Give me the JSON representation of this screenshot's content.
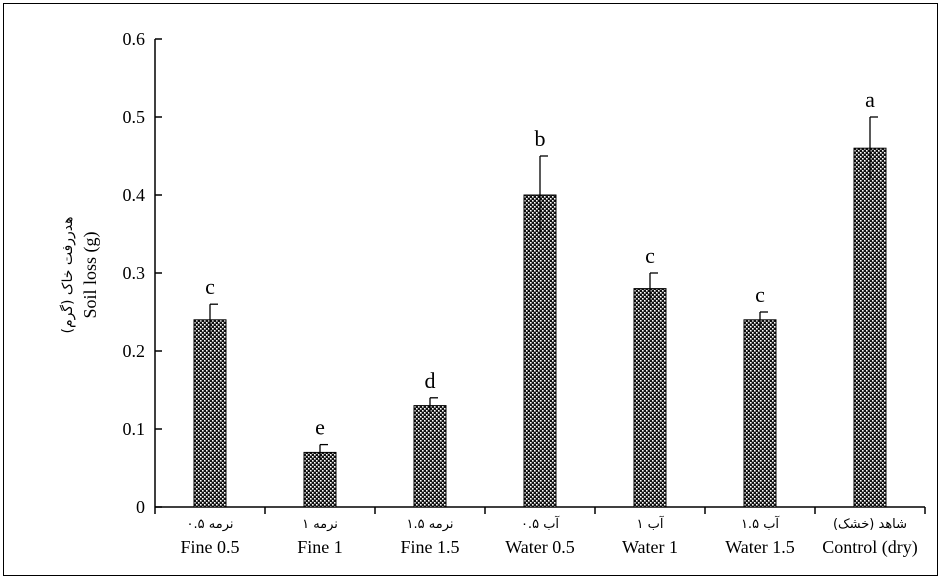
{
  "chart_data": {
    "type": "bar",
    "ylabel": "Soil loss (g)",
    "ylabel_fa": "هدررفت خاک (گرم)",
    "ylim": [
      0,
      0.6
    ],
    "yticks": [
      "0",
      "0.1",
      "0.2",
      "0.3",
      "0.4",
      "0.5",
      "0.6"
    ],
    "categories": [
      "Fine 0.5",
      "Fine 1",
      "Fine 1.5",
      "Water 0.5",
      "Water 1",
      "Water 1.5",
      "Control (dry)"
    ],
    "categories_fa": [
      "نرمه ۰.۵",
      "نرمه ۱",
      "نرمه ۱.۵",
      "آب ۰.۵",
      "آب ۱",
      "آب ۱.۵",
      "شاهد (خشک)"
    ],
    "values": [
      0.24,
      0.07,
      0.13,
      0.4,
      0.28,
      0.24,
      0.46
    ],
    "errors": [
      0.02,
      0.01,
      0.01,
      0.05,
      0.02,
      0.01,
      0.04
    ],
    "letters": [
      "c",
      "e",
      "d",
      "b",
      "c",
      "c",
      "a"
    ],
    "bar_color": "#1a1a1a",
    "grid": false,
    "legend": "none"
  }
}
